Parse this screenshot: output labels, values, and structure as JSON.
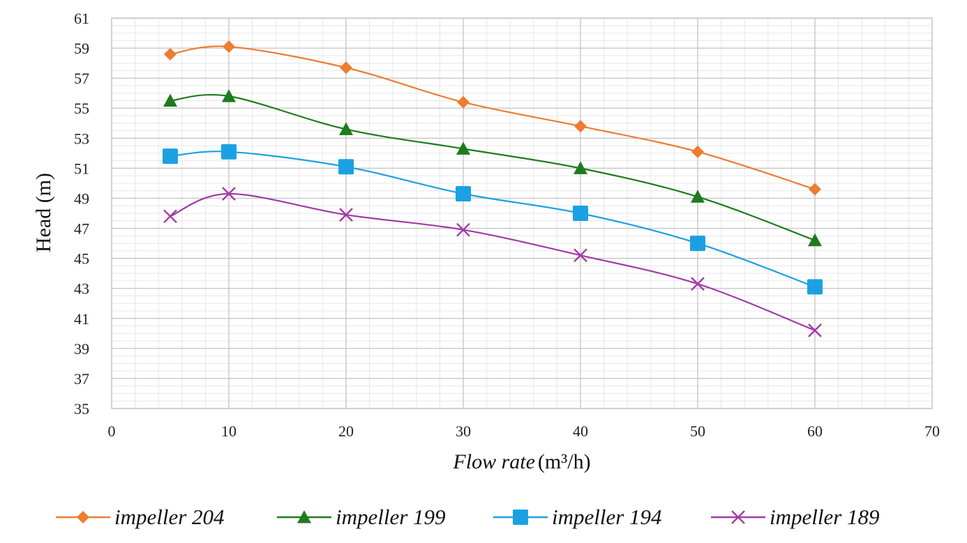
{
  "chart_data": {
    "type": "line",
    "xlabel": {
      "italic": "Flow rate",
      "unit": "(m³/h)"
    },
    "ylabel": "Head (m)",
    "xlim": [
      0,
      70
    ],
    "ylim": [
      35,
      61
    ],
    "x_ticks": [
      "0",
      "10",
      "20",
      "30",
      "40",
      "50",
      "60",
      "70"
    ],
    "y_ticks": [
      "35",
      "37",
      "39",
      "41",
      "43",
      "45",
      "47",
      "49",
      "51",
      "53",
      "55",
      "57",
      "59",
      "61"
    ],
    "grid": true,
    "minor_grid": true,
    "legend_position": "bottom",
    "x": [
      5,
      10,
      20,
      30,
      40,
      50,
      60
    ],
    "series": [
      {
        "name": "impeller 204",
        "color": "#ED7D31",
        "marker": "diamond",
        "values": [
          58.6,
          59.1,
          57.7,
          55.4,
          53.8,
          52.1,
          49.6
        ]
      },
      {
        "name": "impeller 199",
        "color": "#1E7B1E",
        "marker": "triangle",
        "values": [
          55.5,
          55.8,
          53.6,
          52.3,
          51.0,
          49.1,
          46.2
        ]
      },
      {
        "name": "impeller 194",
        "color": "#1BA1E2",
        "marker": "square",
        "values": [
          51.8,
          52.1,
          51.1,
          49.3,
          48.0,
          46.0,
          43.1
        ]
      },
      {
        "name": "impeller 189",
        "color": "#A23BA5",
        "marker": "x",
        "values": [
          47.8,
          49.3,
          47.9,
          46.9,
          45.2,
          43.3,
          40.2
        ]
      }
    ]
  }
}
